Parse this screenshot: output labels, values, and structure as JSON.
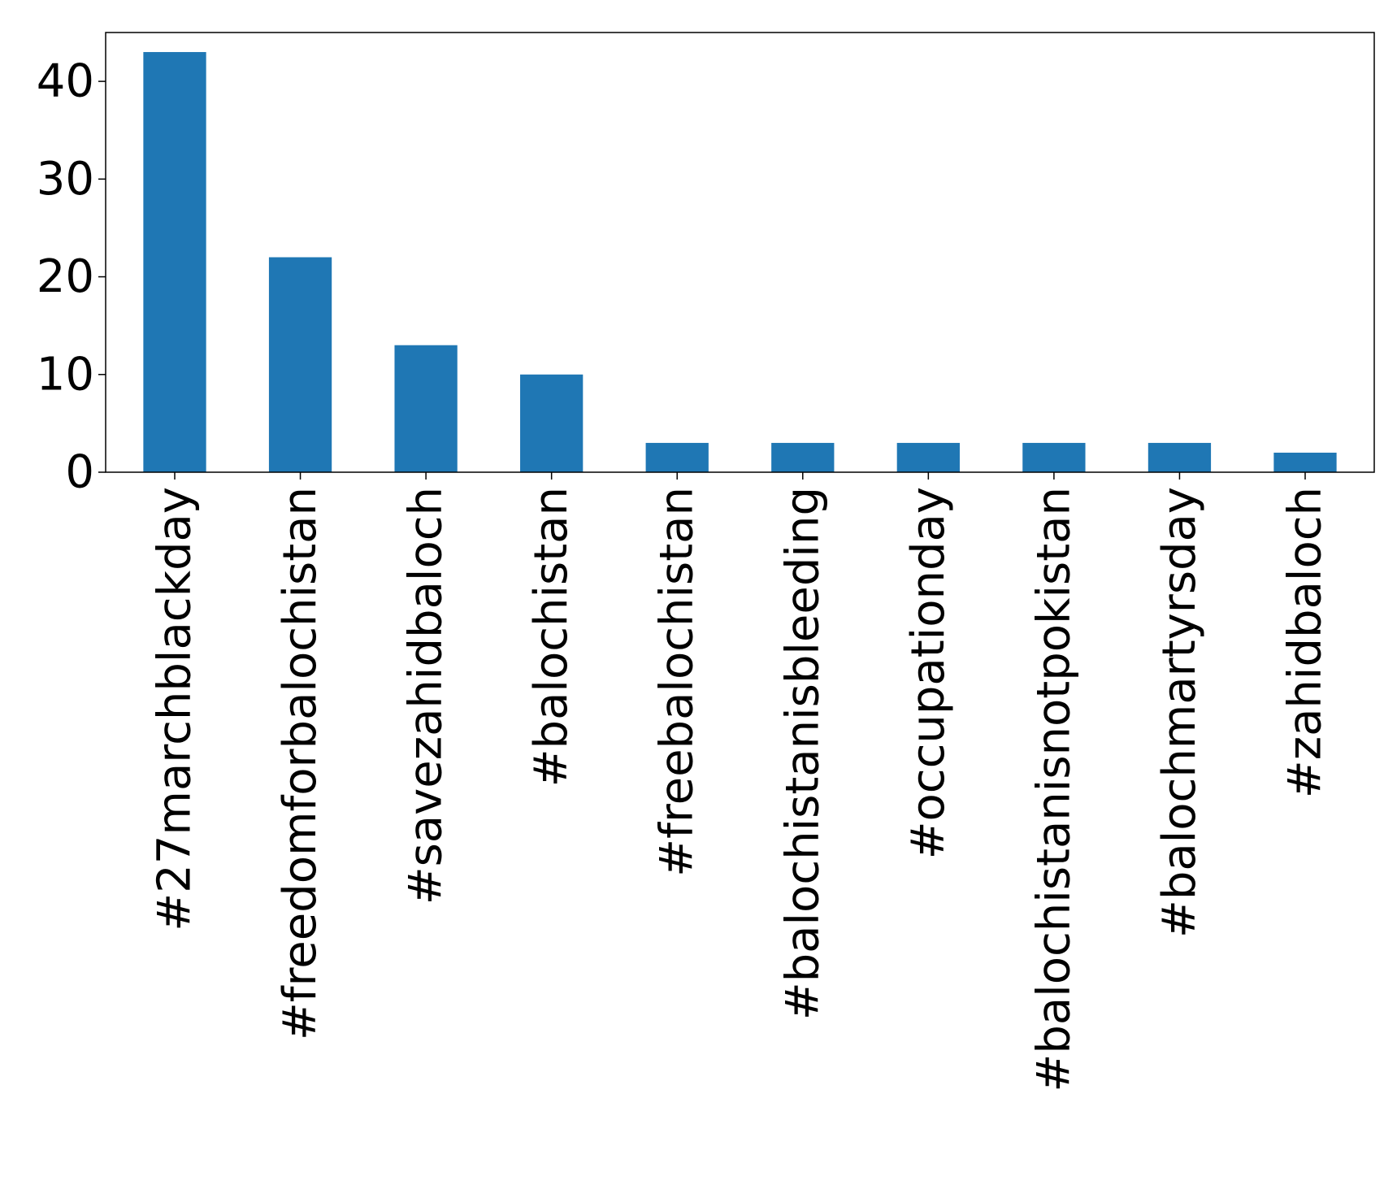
{
  "chart_data": {
    "type": "bar",
    "title": "",
    "xlabel": "",
    "ylabel": "",
    "categories": [
      "#27marchblackday",
      "#freedomforbalochistan",
      "#savezahidbaloch",
      "#balochistan",
      "#freebalochistan",
      "#balochistanisbleeding",
      "#occupationday",
      "#balochistanisnotpokistan",
      "#balochmartyrsday",
      "#zahidbaloch"
    ],
    "values": [
      43,
      22,
      13,
      10,
      3,
      3,
      3,
      3,
      3,
      2
    ],
    "ylim": [
      0,
      45
    ],
    "yticks": [
      0,
      10,
      20,
      30,
      40
    ],
    "grid": false,
    "bar_color": "#1f77b4"
  }
}
